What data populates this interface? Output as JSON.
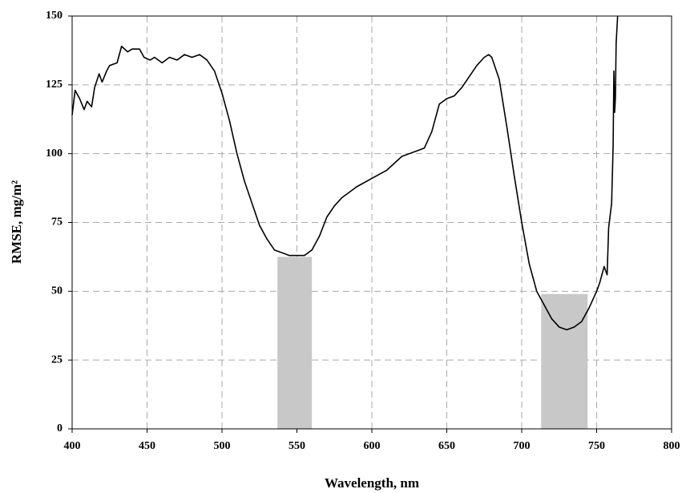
{
  "chart_data": {
    "type": "line",
    "x_label": "Wavelength, nm",
    "y_label": "RMSE, mg/m²",
    "x": [
      400,
      402,
      405,
      408,
      410,
      413,
      415,
      418,
      420,
      423,
      425,
      430,
      433,
      437,
      440,
      445,
      448,
      452,
      455,
      460,
      465,
      470,
      475,
      480,
      485,
      490,
      495,
      500,
      505,
      510,
      515,
      520,
      525,
      530,
      535,
      540,
      545,
      550,
      555,
      560,
      565,
      570,
      575,
      580,
      590,
      600,
      610,
      620,
      630,
      635,
      640,
      645,
      650,
      655,
      660,
      665,
      670,
      675,
      678,
      680,
      685,
      690,
      695,
      700,
      705,
      710,
      715,
      720,
      725,
      730,
      735,
      740,
      745,
      750,
      752,
      755,
      757,
      758,
      760,
      761,
      761.5,
      762,
      762.5,
      763,
      764
    ],
    "values": [
      114,
      123,
      120,
      116,
      119,
      117,
      124,
      129,
      126,
      130,
      132,
      133,
      139,
      137,
      138,
      138,
      135,
      134,
      135,
      133,
      135,
      134,
      136,
      135,
      136,
      134,
      130,
      122,
      112,
      100,
      90,
      82,
      74,
      69,
      65,
      64,
      63,
      63,
      63,
      65,
      70,
      77,
      81,
      84,
      88,
      91,
      94,
      99,
      101,
      102,
      108,
      118,
      120,
      121,
      124,
      128,
      132,
      135,
      136,
      135,
      127,
      110,
      92,
      75,
      60,
      50,
      45,
      40,
      37,
      36,
      37,
      39,
      44,
      50,
      53,
      59,
      56,
      73,
      82,
      103,
      130,
      115,
      120,
      140,
      150
    ],
    "color": "#000000",
    "highlights": [
      {
        "xmin": 537,
        "xmax": 560,
        "ymax": 62.5
      },
      {
        "xmin": 713,
        "xmax": 744,
        "ymax": 49
      }
    ],
    "highlight_color": "#c8c8c8",
    "xlim": [
      400,
      800
    ],
    "xticks": [
      400,
      450,
      500,
      550,
      600,
      650,
      700,
      750,
      800
    ],
    "ylim": [
      0,
      150
    ],
    "yticks": [
      0,
      25,
      50,
      75,
      100,
      125,
      150
    ],
    "grid": true
  }
}
